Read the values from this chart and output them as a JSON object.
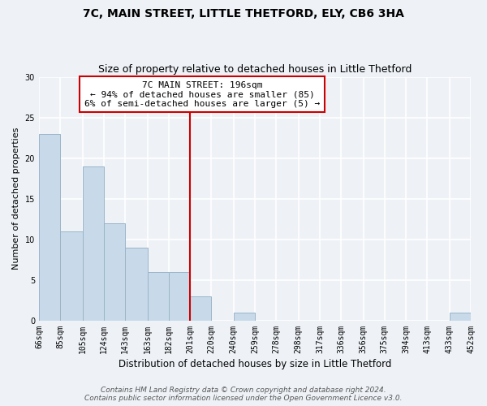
{
  "title": "7C, MAIN STREET, LITTLE THETFORD, ELY, CB6 3HA",
  "subtitle": "Size of property relative to detached houses in Little Thetford",
  "xlabel": "Distribution of detached houses by size in Little Thetford",
  "ylabel": "Number of detached properties",
  "bar_color": "#c8daea",
  "bar_edge_color": "#9ab4c8",
  "background_color": "#eef2f7",
  "grid_color": "#ffffff",
  "vline_color": "#cc0000",
  "bin_edges": [
    66,
    85,
    105,
    124,
    143,
    163,
    182,
    201,
    220,
    240,
    259,
    278,
    298,
    317,
    336,
    356,
    375,
    394,
    413,
    433,
    452
  ],
  "bin_labels": [
    "66sqm",
    "85sqm",
    "105sqm",
    "124sqm",
    "143sqm",
    "163sqm",
    "182sqm",
    "201sqm",
    "220sqm",
    "240sqm",
    "259sqm",
    "278sqm",
    "298sqm",
    "317sqm",
    "336sqm",
    "356sqm",
    "375sqm",
    "394sqm",
    "413sqm",
    "433sqm",
    "452sqm"
  ],
  "counts": [
    23,
    11,
    19,
    12,
    9,
    6,
    6,
    3,
    0,
    1,
    0,
    0,
    0,
    0,
    0,
    0,
    0,
    0,
    0,
    1
  ],
  "ylim": [
    0,
    30
  ],
  "yticks": [
    0,
    5,
    10,
    15,
    20,
    25,
    30
  ],
  "vline_x": 201,
  "annotation_title": "7C MAIN STREET: 196sqm",
  "annotation_line1": "← 94% of detached houses are smaller (85)",
  "annotation_line2": "6% of semi-detached houses are larger (5) →",
  "annotation_box_color": "#ffffff",
  "annotation_box_edge": "#cc0000",
  "footer_line1": "Contains HM Land Registry data © Crown copyright and database right 2024.",
  "footer_line2": "Contains public sector information licensed under the Open Government Licence v3.0.",
  "title_fontsize": 10,
  "subtitle_fontsize": 9,
  "xlabel_fontsize": 8.5,
  "ylabel_fontsize": 8,
  "tick_fontsize": 7,
  "footer_fontsize": 6.5,
  "annotation_fontsize": 8
}
